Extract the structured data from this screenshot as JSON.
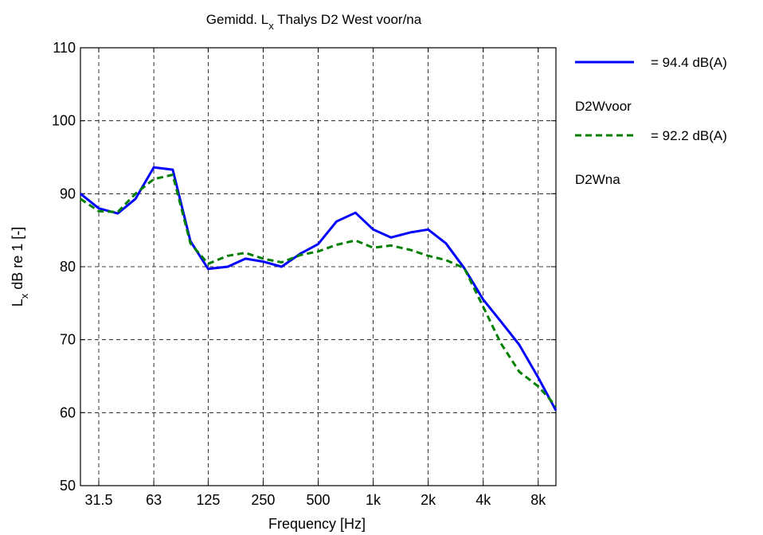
{
  "chart_data": {
    "type": "line",
    "title_parts": [
      "Gemidd. L",
      "x",
      " Thalys D2 West voor/na"
    ],
    "xlabel": "Frequency [Hz]",
    "ylabel_parts": [
      "L",
      "x",
      " dB re 1 [-]"
    ],
    "ylim": [
      50,
      110
    ],
    "yticks": [
      50,
      60,
      70,
      80,
      90,
      100,
      110
    ],
    "x_scale": "log",
    "xlim": [
      25,
      10000
    ],
    "xtick_values": [
      31.5,
      63,
      125,
      250,
      500,
      1000,
      2000,
      4000,
      8000
    ],
    "xtick_labels": [
      "31.5",
      "63",
      "125",
      "250",
      "500",
      "1k",
      "2k",
      "4k",
      "8k"
    ],
    "grid": true,
    "legend_placement": "outside-right",
    "x": [
      25,
      31.5,
      40,
      50,
      63,
      80,
      100,
      125,
      160,
      200,
      250,
      315,
      400,
      500,
      630,
      800,
      1000,
      1250,
      1600,
      2000,
      2500,
      3150,
      4000,
      5000,
      6300,
      8000,
      10000
    ],
    "series": [
      {
        "name": "D2Wvoor",
        "legend_value": "= 94.4 dB(A)",
        "color": "#0000ff",
        "style": "solid",
        "values": [
          90.0,
          88.0,
          87.3,
          89.3,
          93.6,
          93.3,
          83.5,
          79.7,
          80.0,
          81.1,
          80.7,
          80.0,
          81.8,
          83.1,
          86.2,
          87.4,
          85.1,
          84.0,
          84.7,
          85.1,
          83.2,
          79.8,
          75.5,
          72.5,
          69.3,
          64.8,
          60.3
        ]
      },
      {
        "name": "D2Wna",
        "legend_value": "= 92.2 dB(A)",
        "color": "#007f00",
        "style": "dashed",
        "values": [
          89.3,
          87.6,
          87.5,
          90.0,
          92.0,
          92.6,
          83.2,
          80.4,
          81.5,
          81.9,
          81.1,
          80.6,
          81.6,
          82.1,
          83.0,
          83.6,
          82.6,
          82.9,
          82.3,
          81.5,
          80.9,
          79.8,
          74.5,
          69.5,
          65.6,
          63.6,
          60.9
        ]
      }
    ]
  },
  "colors": {
    "background": "#ffffff",
    "axis": "#000000",
    "series1": "#0000ff",
    "series2": "#007f00"
  }
}
